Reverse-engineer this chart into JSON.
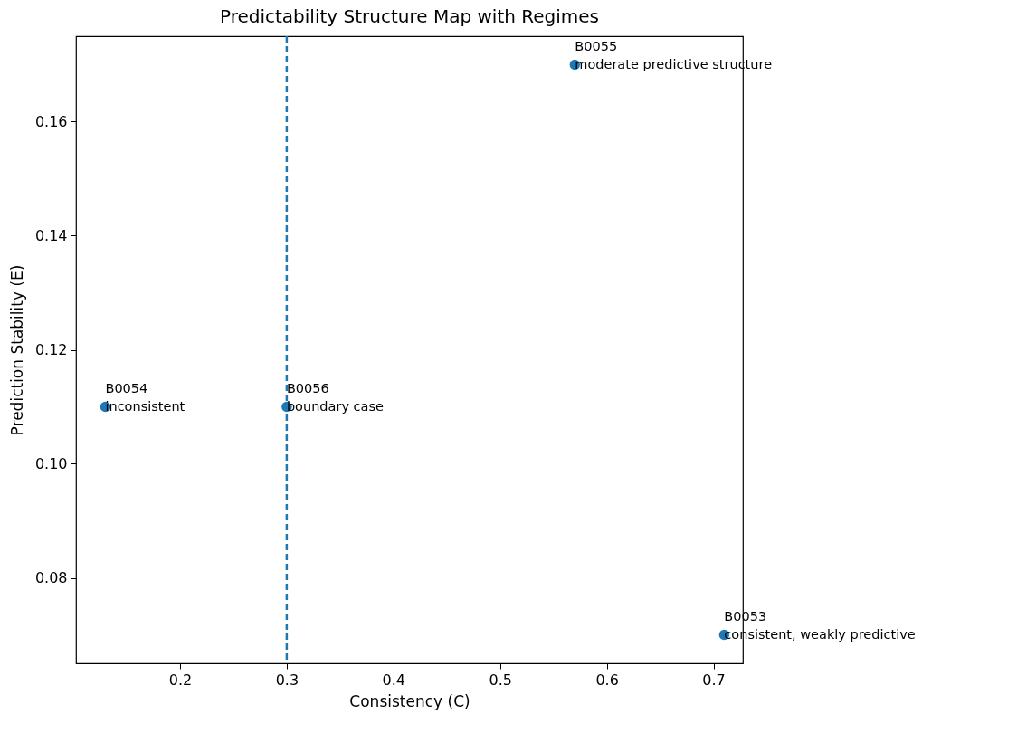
{
  "chart_data": {
    "type": "scatter",
    "title": "Predictability Structure Map with Regimes",
    "xlabel": "Consistency (C)",
    "ylabel": "Prediction Stability (E)",
    "x": [
      0.71,
      0.13,
      0.57,
      0.3
    ],
    "series": [
      {
        "color": "#1f77b4",
        "values": [
          0.07,
          0.11,
          0.17,
          0.11
        ]
      }
    ],
    "xlim": [
      0.1025,
      0.7275
    ],
    "ylim": [
      0.065,
      0.175
    ],
    "xticks": [
      0.2,
      0.3,
      0.4,
      0.5,
      0.6,
      0.7
    ],
    "yticks": [
      0.08,
      {
        "value": 0.1,
        "label": "0.10"
      },
      0.12,
      0.14,
      0.16
    ],
    "ref_lines": [
      {
        "axis": "x",
        "value": 0.3,
        "color": "#1f77b4",
        "line_style": "dashed"
      }
    ],
    "annotations": [
      {
        "text": "B0053\nconsistent, weakly predictive",
        "x": 0.71,
        "y": 0.07
      },
      {
        "text": "B0054\ninconsistent",
        "x": 0.13,
        "y": 0.11
      },
      {
        "text": "B0055\nmoderate predictive structure",
        "x": 0.57,
        "y": 0.17
      },
      {
        "text": "B0056\nboundary case",
        "x": 0.3,
        "y": 0.11
      }
    ],
    "marker": "circle",
    "grid": false,
    "legend": false
  }
}
